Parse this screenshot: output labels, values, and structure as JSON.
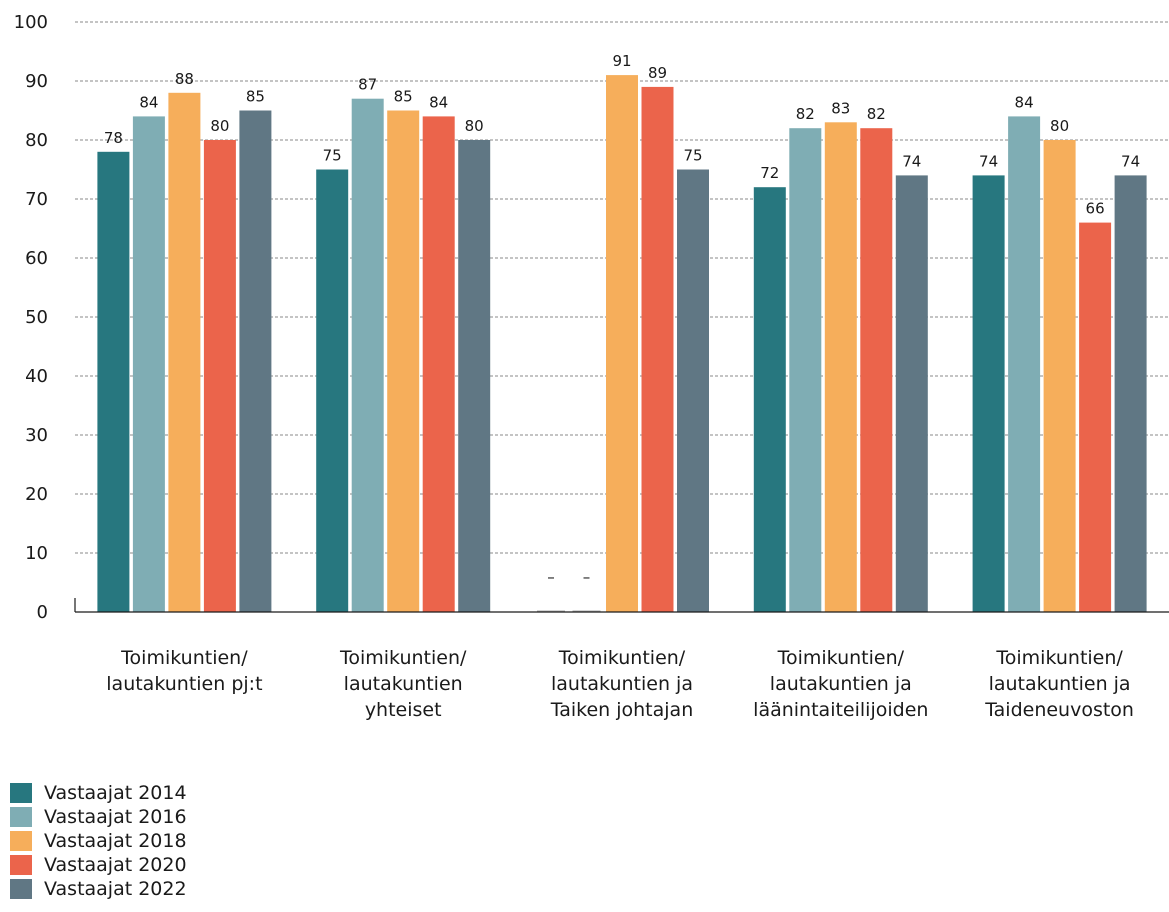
{
  "chart_data": {
    "type": "bar",
    "title": "",
    "xlabel": "",
    "ylabel": "",
    "ylim": [
      0,
      100
    ],
    "yticks": [
      0,
      10,
      20,
      30,
      40,
      50,
      60,
      70,
      80,
      90,
      100
    ],
    "grid": true,
    "legend_position": "bottom-left",
    "missing_label": "–",
    "categories": [
      [
        "Toimikuntien/",
        "lautakuntien pj:t"
      ],
      [
        "Toimikuntien/",
        "lautakuntien",
        "yhteiset"
      ],
      [
        "Toimikuntien/",
        "lautakuntien ja",
        "Taiken johtajan"
      ],
      [
        "Toimikuntien/",
        "lautakuntien ja",
        "läänintaiteilijoiden"
      ],
      [
        "Toimikuntien/",
        "lautakuntien ja",
        "Taideneuvoston"
      ]
    ],
    "series": [
      {
        "name": "Vastaajat 2014",
        "color": "#27777f",
        "values": [
          78,
          75,
          null,
          72,
          74
        ]
      },
      {
        "name": "Vastaajat 2016",
        "color": "#7fadb4",
        "values": [
          84,
          87,
          null,
          82,
          84
        ]
      },
      {
        "name": "Vastaajat 2018",
        "color": "#f6ae5b",
        "values": [
          88,
          85,
          91,
          83,
          80
        ]
      },
      {
        "name": "Vastaajat 2020",
        "color": "#eb644b",
        "values": [
          80,
          84,
          89,
          82,
          66
        ]
      },
      {
        "name": "Vastaajat 2022",
        "color": "#607784",
        "values": [
          85,
          80,
          75,
          74,
          74
        ]
      }
    ]
  }
}
